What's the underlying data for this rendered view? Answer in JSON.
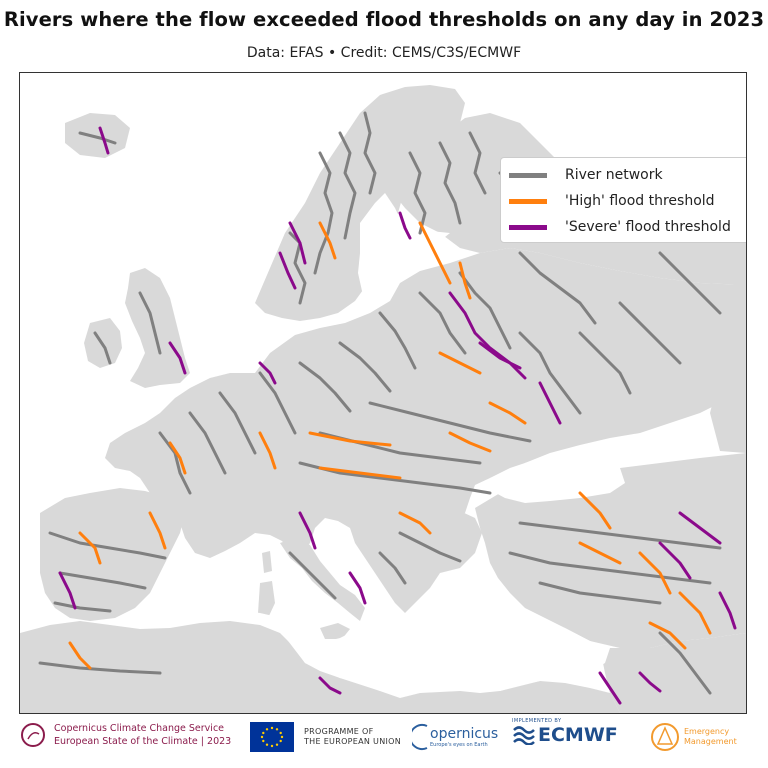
{
  "title": "Rivers where the flow exceeded flood thresholds on any day in 2023",
  "subtitle": "Data: EFAS • Credit: CEMS/C3S/ECMWF",
  "colors": {
    "land": "#d9d9d9",
    "sea": "#ffffff",
    "river": "#808080",
    "high": "#ff7f0e",
    "severe": "#8b0a8b"
  },
  "legend": {
    "items": [
      {
        "label": "River network",
        "color": "#808080"
      },
      {
        "label": "'High' flood threshold",
        "color": "#ff7f0e"
      },
      {
        "label": "'Severe' flood threshold",
        "color": "#8b0a8b"
      }
    ]
  },
  "footer": {
    "c3s_line1": "Copernicus Climate Change Service",
    "c3s_line2": "European State of the Climate | 2023",
    "eu_line1": "PROGRAMME OF",
    "eu_line2": "THE EUROPEAN UNION",
    "copernicus": "opernicus",
    "copernicus_sub": "Europe's eyes on Earth",
    "ecmwf_impl": "IMPLEMENTED BY",
    "ecmwf": "ECMWF",
    "em_line1": "Emergency",
    "em_line2": "Management"
  }
}
